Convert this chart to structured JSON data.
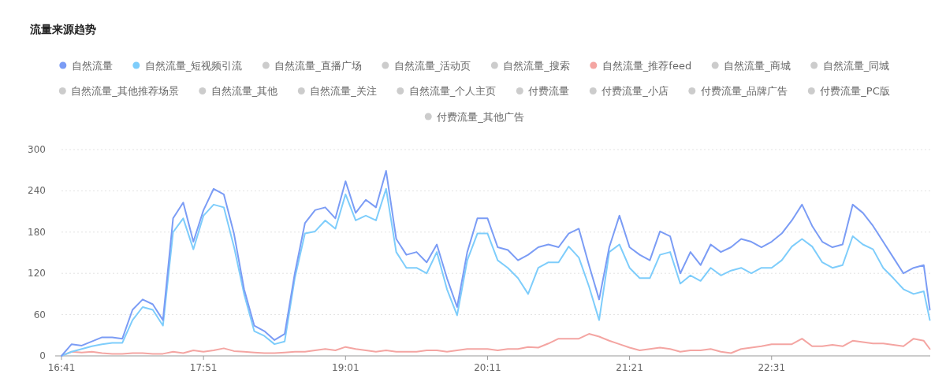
{
  "chart_data": {
    "type": "line",
    "title": "流量来源趋势",
    "x": [
      16.6833,
      16.7667,
      16.85,
      16.9333,
      17.0167,
      17.1,
      17.1833,
      17.2667,
      17.35,
      17.4333,
      17.5167,
      17.6,
      17.6833,
      17.7667,
      17.85,
      17.9333,
      18.0167,
      18.1,
      18.1833,
      18.2667,
      18.35,
      18.4333,
      18.5167,
      18.6,
      18.6833,
      18.7667,
      18.85,
      18.9333,
      19.0167,
      19.1,
      19.1833,
      19.2667,
      19.35,
      19.4333,
      19.5167,
      19.6,
      19.6833,
      19.7667,
      19.85,
      19.9333,
      20.0167,
      20.1,
      20.1833,
      20.2667,
      20.35,
      20.4333,
      20.5167,
      20.6,
      20.6833,
      20.7667,
      20.85,
      20.9333,
      21.0167,
      21.1,
      21.1833,
      21.2667,
      21.35,
      21.4333,
      21.5167,
      21.6,
      21.6833,
      21.7667,
      21.85,
      21.9333,
      22.0167,
      22.1,
      22.1833,
      22.2667,
      22.35,
      22.4333,
      22.5167,
      22.6,
      22.6833,
      22.7667,
      22.85,
      22.9333,
      23.0167,
      23.1,
      23.1833,
      23.2667,
      23.35,
      23.4333,
      23.5167,
      23.6,
      23.6833,
      23.7667,
      23.8167
    ],
    "xlim": [
      16.6833,
      23.82
    ],
    "xticks": [
      {
        "value": 16.6833,
        "label": "16:41"
      },
      {
        "value": 17.85,
        "label": "17:51"
      },
      {
        "value": 19.0167,
        "label": "19:01"
      },
      {
        "value": 20.1833,
        "label": "20:11"
      },
      {
        "value": 21.35,
        "label": "21:21"
      },
      {
        "value": 22.5167,
        "label": "22:31"
      }
    ],
    "ylim": [
      0,
      300
    ],
    "yticks": [
      0,
      60,
      120,
      180,
      240,
      300
    ],
    "grid": "y",
    "legend": "top",
    "marker": "none",
    "line_style": "solid",
    "series": [
      {
        "name": "自然流量",
        "color": "#7b9cf5",
        "values": [
          0,
          17,
          15,
          21,
          27,
          27,
          25,
          67,
          82,
          75,
          52,
          200,
          223,
          166,
          212,
          243,
          235,
          178,
          97,
          44,
          36,
          23,
          32,
          120,
          193,
          212,
          216,
          200,
          254,
          208,
          227,
          216,
          269,
          170,
          147,
          151,
          136,
          162,
          113,
          71,
          151,
          200,
          200,
          158,
          154,
          139,
          147,
          158,
          162,
          158,
          178,
          185,
          132,
          82,
          158,
          204,
          158,
          147,
          139,
          181,
          174,
          120,
          151,
          132,
          162,
          151,
          158,
          170,
          166,
          158,
          166,
          178,
          197,
          220,
          189,
          166,
          158,
          162,
          220,
          208,
          189,
          166,
          143,
          120,
          128,
          132,
          67
        ]
      },
      {
        "name": "自然流量_短视频引流",
        "color": "#7ecdfb",
        "values": [
          0,
          6,
          10,
          14,
          17,
          19,
          19,
          52,
          71,
          67,
          44,
          180,
          200,
          155,
          204,
          220,
          216,
          159,
          90,
          36,
          29,
          17,
          21,
          113,
          178,
          181,
          197,
          185,
          235,
          197,
          204,
          197,
          243,
          151,
          128,
          128,
          120,
          151,
          97,
          59,
          139,
          178,
          178,
          139,
          128,
          113,
          90,
          128,
          136,
          136,
          159,
          143,
          101,
          52,
          151,
          162,
          128,
          113,
          113,
          147,
          151,
          105,
          117,
          109,
          128,
          117,
          124,
          128,
          120,
          128,
          128,
          139,
          159,
          170,
          159,
          136,
          128,
          132,
          174,
          162,
          155,
          128,
          113,
          97,
          90,
          94,
          52
        ]
      },
      {
        "name": "自然流量_直播广场",
        "color": "#cccccc",
        "values": [
          null,
          null,
          null,
          null,
          null,
          null,
          null,
          null,
          null,
          null,
          null,
          null,
          null,
          null,
          null,
          null,
          null,
          null,
          null,
          null,
          null,
          null,
          null,
          null,
          null,
          null,
          null,
          null,
          null,
          null,
          null,
          null,
          null,
          null,
          null,
          null,
          null,
          null,
          null,
          null,
          null,
          null,
          null,
          null,
          null,
          null,
          null,
          null,
          null,
          null,
          null,
          null,
          null,
          null,
          null,
          null,
          null,
          null,
          null,
          null,
          null,
          null,
          null,
          null,
          null,
          null,
          null,
          null,
          null,
          null,
          null,
          null,
          null,
          null,
          null,
          null,
          null,
          null,
          null,
          null,
          null,
          null,
          null,
          null,
          null,
          null,
          null
        ]
      },
      {
        "name": "自然流量_活动页",
        "color": "#cccccc",
        "values": [
          null,
          null,
          null,
          null,
          null,
          null,
          null,
          null,
          null,
          null,
          null,
          null,
          null,
          null,
          null,
          null,
          null,
          null,
          null,
          null,
          null,
          null,
          null,
          null,
          null,
          null,
          null,
          null,
          null,
          null,
          null,
          null,
          null,
          null,
          null,
          null,
          null,
          null,
          null,
          null,
          null,
          null,
          null,
          null,
          null,
          null,
          null,
          null,
          null,
          null,
          null,
          null,
          null,
          null,
          null,
          null,
          null,
          null,
          null,
          null,
          null,
          null,
          null,
          null,
          null,
          null,
          null,
          null,
          null,
          null,
          null,
          null,
          null,
          null,
          null,
          null,
          null,
          null,
          null,
          null,
          null,
          null,
          null,
          null,
          null,
          null,
          null
        ]
      },
      {
        "name": "自然流量_搜索",
        "color": "#cccccc",
        "values": [
          null,
          null,
          null,
          null,
          null,
          null,
          null,
          null,
          null,
          null,
          null,
          null,
          null,
          null,
          null,
          null,
          null,
          null,
          null,
          null,
          null,
          null,
          null,
          null,
          null,
          null,
          null,
          null,
          null,
          null,
          null,
          null,
          null,
          null,
          null,
          null,
          null,
          null,
          null,
          null,
          null,
          null,
          null,
          null,
          null,
          null,
          null,
          null,
          null,
          null,
          null,
          null,
          null,
          null,
          null,
          null,
          null,
          null,
          null,
          null,
          null,
          null,
          null,
          null,
          null,
          null,
          null,
          null,
          null,
          null,
          null,
          null,
          null,
          null,
          null,
          null,
          null,
          null,
          null,
          null,
          null,
          null,
          null,
          null,
          null,
          null,
          null
        ]
      },
      {
        "name": "自然流量_推荐feed",
        "color": "#f4a5a2",
        "values": [
          0,
          6,
          5,
          6,
          4,
          3,
          3,
          4,
          4,
          3,
          3,
          6,
          4,
          8,
          6,
          8,
          11,
          7,
          6,
          5,
          4,
          4,
          5,
          6,
          6,
          8,
          10,
          8,
          13,
          10,
          8,
          6,
          8,
          6,
          6,
          6,
          8,
          8,
          6,
          8,
          10,
          10,
          10,
          8,
          10,
          10,
          13,
          12,
          18,
          25,
          25,
          25,
          32,
          28,
          22,
          17,
          12,
          8,
          10,
          12,
          10,
          6,
          8,
          8,
          10,
          6,
          4,
          10,
          12,
          14,
          17,
          17,
          17,
          25,
          14,
          14,
          16,
          14,
          22,
          20,
          18,
          18,
          16,
          14,
          25,
          22,
          10
        ]
      },
      {
        "name": "自然流量_商城",
        "color": "#cccccc",
        "values": [
          null,
          null,
          null,
          null,
          null,
          null,
          null,
          null,
          null,
          null,
          null,
          null,
          null,
          null,
          null,
          null,
          null,
          null,
          null,
          null,
          null,
          null,
          null,
          null,
          null,
          null,
          null,
          null,
          null,
          null,
          null,
          null,
          null,
          null,
          null,
          null,
          null,
          null,
          null,
          null,
          null,
          null,
          null,
          null,
          null,
          null,
          null,
          null,
          null,
          null,
          null,
          null,
          null,
          null,
          null,
          null,
          null,
          null,
          null,
          null,
          null,
          null,
          null,
          null,
          null,
          null,
          null,
          null,
          null,
          null,
          null,
          null,
          null,
          null,
          null,
          null,
          null,
          null,
          null,
          null,
          null,
          null,
          null,
          null,
          null,
          null,
          null
        ]
      },
      {
        "name": "自然流量_同城",
        "color": "#cccccc",
        "values": [
          null,
          null,
          null,
          null,
          null,
          null,
          null,
          null,
          null,
          null,
          null,
          null,
          null,
          null,
          null,
          null,
          null,
          null,
          null,
          null,
          null,
          null,
          null,
          null,
          null,
          null,
          null,
          null,
          null,
          null,
          null,
          null,
          null,
          null,
          null,
          null,
          null,
          null,
          null,
          null,
          null,
          null,
          null,
          null,
          null,
          null,
          null,
          null,
          null,
          null,
          null,
          null,
          null,
          null,
          null,
          null,
          null,
          null,
          null,
          null,
          null,
          null,
          null,
          null,
          null,
          null,
          null,
          null,
          null,
          null,
          null,
          null,
          null,
          null,
          null,
          null,
          null,
          null,
          null,
          null,
          null,
          null,
          null,
          null,
          null,
          null,
          null
        ]
      },
      {
        "name": "自然流量_其他推荐场景",
        "color": "#cccccc",
        "values": [
          null,
          null,
          null,
          null,
          null,
          null,
          null,
          null,
          null,
          null,
          null,
          null,
          null,
          null,
          null,
          null,
          null,
          null,
          null,
          null,
          null,
          null,
          null,
          null,
          null,
          null,
          null,
          null,
          null,
          null,
          null,
          null,
          null,
          null,
          null,
          null,
          null,
          null,
          null,
          null,
          null,
          null,
          null,
          null,
          null,
          null,
          null,
          null,
          null,
          null,
          null,
          null,
          null,
          null,
          null,
          null,
          null,
          null,
          null,
          null,
          null,
          null,
          null,
          null,
          null,
          null,
          null,
          null,
          null,
          null,
          null,
          null,
          null,
          null,
          null,
          null,
          null,
          null,
          null,
          null,
          null,
          null,
          null,
          null,
          null,
          null,
          null
        ]
      },
      {
        "name": "自然流量_其他",
        "color": "#cccccc",
        "values": [
          null,
          null,
          null,
          null,
          null,
          null,
          null,
          null,
          null,
          null,
          null,
          null,
          null,
          null,
          null,
          null,
          null,
          null,
          null,
          null,
          null,
          null,
          null,
          null,
          null,
          null,
          null,
          null,
          null,
          null,
          null,
          null,
          null,
          null,
          null,
          null,
          null,
          null,
          null,
          null,
          null,
          null,
          null,
          null,
          null,
          null,
          null,
          null,
          null,
          null,
          null,
          null,
          null,
          null,
          null,
          null,
          null,
          null,
          null,
          null,
          null,
          null,
          null,
          null,
          null,
          null,
          null,
          null,
          null,
          null,
          null,
          null,
          null,
          null,
          null,
          null,
          null,
          null,
          null,
          null,
          null,
          null,
          null,
          null,
          null,
          null,
          null
        ]
      },
      {
        "name": "自然流量_关注",
        "color": "#cccccc",
        "values": [
          null,
          null,
          null,
          null,
          null,
          null,
          null,
          null,
          null,
          null,
          null,
          null,
          null,
          null,
          null,
          null,
          null,
          null,
          null,
          null,
          null,
          null,
          null,
          null,
          null,
          null,
          null,
          null,
          null,
          null,
          null,
          null,
          null,
          null,
          null,
          null,
          null,
          null,
          null,
          null,
          null,
          null,
          null,
          null,
          null,
          null,
          null,
          null,
          null,
          null,
          null,
          null,
          null,
          null,
          null,
          null,
          null,
          null,
          null,
          null,
          null,
          null,
          null,
          null,
          null,
          null,
          null,
          null,
          null,
          null,
          null,
          null,
          null,
          null,
          null,
          null,
          null,
          null,
          null,
          null,
          null,
          null,
          null,
          null,
          null,
          null,
          null
        ]
      },
      {
        "name": "自然流量_个人主页",
        "color": "#cccccc",
        "values": [
          null,
          null,
          null,
          null,
          null,
          null,
          null,
          null,
          null,
          null,
          null,
          null,
          null,
          null,
          null,
          null,
          null,
          null,
          null,
          null,
          null,
          null,
          null,
          null,
          null,
          null,
          null,
          null,
          null,
          null,
          null,
          null,
          null,
          null,
          null,
          null,
          null,
          null,
          null,
          null,
          null,
          null,
          null,
          null,
          null,
          null,
          null,
          null,
          null,
          null,
          null,
          null,
          null,
          null,
          null,
          null,
          null,
          null,
          null,
          null,
          null,
          null,
          null,
          null,
          null,
          null,
          null,
          null,
          null,
          null,
          null,
          null,
          null,
          null,
          null,
          null,
          null,
          null,
          null,
          null,
          null,
          null,
          null,
          null,
          null,
          null,
          null
        ]
      },
      {
        "name": "付费流量",
        "color": "#cccccc",
        "values": [
          null,
          null,
          null,
          null,
          null,
          null,
          null,
          null,
          null,
          null,
          null,
          null,
          null,
          null,
          null,
          null,
          null,
          null,
          null,
          null,
          null,
          null,
          null,
          null,
          null,
          null,
          null,
          null,
          null,
          null,
          null,
          null,
          null,
          null,
          null,
          null,
          null,
          null,
          null,
          null,
          null,
          null,
          null,
          null,
          null,
          null,
          null,
          null,
          null,
          null,
          null,
          null,
          null,
          null,
          null,
          null,
          null,
          null,
          null,
          null,
          null,
          null,
          null,
          null,
          null,
          null,
          null,
          null,
          null,
          null,
          null,
          null,
          null,
          null,
          null,
          null,
          null,
          null,
          null,
          null,
          null,
          null,
          null,
          null,
          null,
          null,
          null
        ]
      },
      {
        "name": "付费流量_小店",
        "color": "#cccccc",
        "values": [
          null,
          null,
          null,
          null,
          null,
          null,
          null,
          null,
          null,
          null,
          null,
          null,
          null,
          null,
          null,
          null,
          null,
          null,
          null,
          null,
          null,
          null,
          null,
          null,
          null,
          null,
          null,
          null,
          null,
          null,
          null,
          null,
          null,
          null,
          null,
          null,
          null,
          null,
          null,
          null,
          null,
          null,
          null,
          null,
          null,
          null,
          null,
          null,
          null,
          null,
          null,
          null,
          null,
          null,
          null,
          null,
          null,
          null,
          null,
          null,
          null,
          null,
          null,
          null,
          null,
          null,
          null,
          null,
          null,
          null,
          null,
          null,
          null,
          null,
          null,
          null,
          null,
          null,
          null,
          null,
          null,
          null,
          null,
          null,
          null,
          null,
          null
        ]
      },
      {
        "name": "付费流量_品牌广告",
        "color": "#cccccc",
        "values": [
          null,
          null,
          null,
          null,
          null,
          null,
          null,
          null,
          null,
          null,
          null,
          null,
          null,
          null,
          null,
          null,
          null,
          null,
          null,
          null,
          null,
          null,
          null,
          null,
          null,
          null,
          null,
          null,
          null,
          null,
          null,
          null,
          null,
          null,
          null,
          null,
          null,
          null,
          null,
          null,
          null,
          null,
          null,
          null,
          null,
          null,
          null,
          null,
          null,
          null,
          null,
          null,
          null,
          null,
          null,
          null,
          null,
          null,
          null,
          null,
          null,
          null,
          null,
          null,
          null,
          null,
          null,
          null,
          null,
          null,
          null,
          null,
          null,
          null,
          null,
          null,
          null,
          null,
          null,
          null,
          null,
          null,
          null,
          null,
          null,
          null,
          null
        ]
      },
      {
        "name": "付费流量_PC版",
        "color": "#cccccc",
        "values": [
          null,
          null,
          null,
          null,
          null,
          null,
          null,
          null,
          null,
          null,
          null,
          null,
          null,
          null,
          null,
          null,
          null,
          null,
          null,
          null,
          null,
          null,
          null,
          null,
          null,
          null,
          null,
          null,
          null,
          null,
          null,
          null,
          null,
          null,
          null,
          null,
          null,
          null,
          null,
          null,
          null,
          null,
          null,
          null,
          null,
          null,
          null,
          null,
          null,
          null,
          null,
          null,
          null,
          null,
          null,
          null,
          null,
          null,
          null,
          null,
          null,
          null,
          null,
          null,
          null,
          null,
          null,
          null,
          null,
          null,
          null,
          null,
          null,
          null,
          null,
          null,
          null,
          null,
          null,
          null,
          null,
          null,
          null,
          null,
          null,
          null,
          null
        ]
      },
      {
        "name": "付费流量_其他广告",
        "color": "#cccccc",
        "values": [
          null,
          null,
          null,
          null,
          null,
          null,
          null,
          null,
          null,
          null,
          null,
          null,
          null,
          null,
          null,
          null,
          null,
          null,
          null,
          null,
          null,
          null,
          null,
          null,
          null,
          null,
          null,
          null,
          null,
          null,
          null,
          null,
          null,
          null,
          null,
          null,
          null,
          null,
          null,
          null,
          null,
          null,
          null,
          null,
          null,
          null,
          null,
          null,
          null,
          null,
          null,
          null,
          null,
          null,
          null,
          null,
          null,
          null,
          null,
          null,
          null,
          null,
          null,
          null,
          null,
          null,
          null,
          null,
          null,
          null,
          null,
          null,
          null,
          null,
          null,
          null,
          null,
          null,
          null,
          null,
          null,
          null,
          null,
          null,
          null,
          null,
          null
        ]
      }
    ]
  }
}
